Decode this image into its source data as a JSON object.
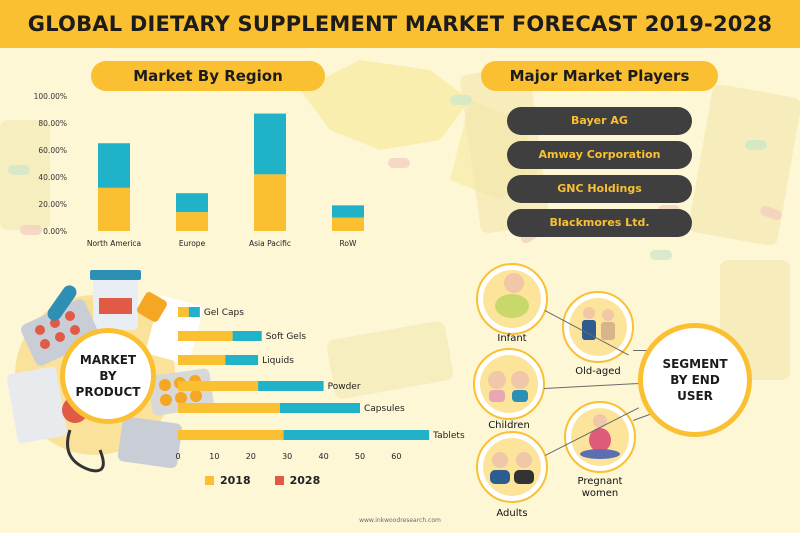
{
  "title": "GLOBAL DIETARY SUPPLEMENT MARKET FORECAST 2019-2028",
  "colors": {
    "accent": "#fac032",
    "teal": "#20b2c9",
    "dark": "#3f3f3f",
    "red": "#e05a45"
  },
  "sections": {
    "region_title": "Market By Region",
    "players_title": "Major Market Players",
    "product_label": "MARKET BY PRODUCT",
    "segment_label": "SEGMENT BY END USER"
  },
  "players": [
    "Bayer AG",
    "Amway Corporation",
    "GNC Holdings",
    "Blackmores Ltd."
  ],
  "segments": {
    "infant": "Infant",
    "old_aged": "Old-aged",
    "children": "Children",
    "pregnant": "Pregnant women",
    "adults": "Adults"
  },
  "footer": "www.inkwoodresearch.com",
  "chart_data": [
    {
      "type": "bar",
      "title": "Market By Region",
      "categories": [
        "North America",
        "Europe",
        "Asia Pacific",
        "RoW"
      ],
      "series": [
        {
          "name": "2018",
          "values": [
            32,
            14,
            42,
            10
          ]
        },
        {
          "name": "2028",
          "values": [
            33,
            14,
            45,
            9
          ]
        }
      ],
      "stacked": true,
      "ylim": [
        0,
        100
      ],
      "yticks": [
        "0.00%",
        "20.00%",
        "40.00%",
        "60.00%",
        "80.00%",
        "100.00%"
      ]
    },
    {
      "type": "bar",
      "orientation": "horizontal",
      "title": "MARKET BY PRODUCT",
      "categories": [
        "Gel Caps",
        "Soft Gels",
        "Liquids",
        "Powder",
        "Capsules",
        "Tablets"
      ],
      "series": [
        {
          "name": "2018",
          "values": [
            3,
            15,
            13,
            22,
            28,
            29
          ]
        },
        {
          "name": "2028",
          "values": [
            3,
            8,
            9,
            18,
            22,
            40
          ]
        }
      ],
      "stacked": true,
      "xlim": [
        0,
        70
      ],
      "xticks": [
        "0",
        "10",
        "20",
        "30",
        "40",
        "50",
        "60"
      ],
      "legend": [
        "2018",
        "2028"
      ],
      "legend_colors": [
        "#fac032",
        "#e05a45"
      ]
    }
  ]
}
